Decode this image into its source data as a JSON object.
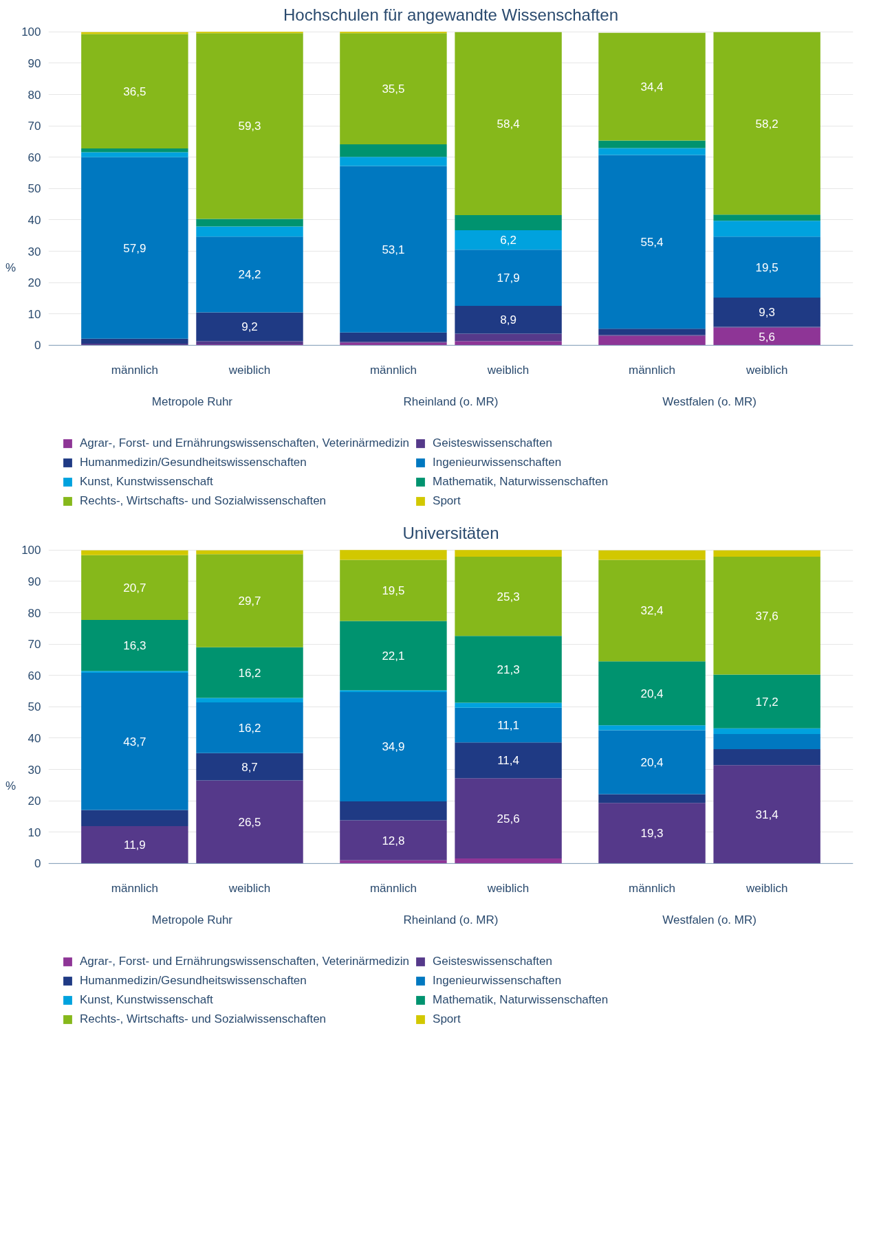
{
  "chart_data": [
    {
      "type": "bar",
      "stacked": true,
      "title": "Hochschulen für angewandte Wissenschaften",
      "ylabel": "%",
      "categories": [
        "männlich",
        "weiblich",
        "männlich",
        "weiblich",
        "männlich",
        "weiblich"
      ],
      "annotations": [
        "Metropole Ruhr",
        "Rheinland (o. MR)",
        "Westfalen (o. MR)"
      ],
      "ylim": [
        0,
        100
      ],
      "yticks": [
        0,
        10,
        20,
        30,
        40,
        50,
        60,
        70,
        80,
        90,
        100
      ],
      "grid": "y",
      "legend": "bottom",
      "series": [
        {
          "name": "Agrar-, Forst- und Ernährungswissenschaften, Veterinärmedizin",
          "color": "#8e3596",
          "values": [
            null,
            0.3,
            0.8,
            1.3,
            3.0,
            5.6
          ],
          "value_labels": [
            null,
            null,
            null,
            null,
            null,
            "5,6"
          ]
        },
        {
          "name": "Geisteswissenschaften",
          "color": "#55398a",
          "values": [
            0.5,
            1.0,
            0.3,
            2.4,
            0.3,
            0.3
          ],
          "value_labels": [
            null,
            null,
            null,
            null,
            null,
            null
          ]
        },
        {
          "name": "Humanmedizin/Gesundheitswissenschaften",
          "color": "#1f3a84",
          "values": [
            1.6,
            9.2,
            3.0,
            8.9,
            2.0,
            9.3
          ],
          "value_labels": [
            null,
            "9,2",
            null,
            "8,9",
            null,
            "9,3"
          ]
        },
        {
          "name": "Ingenieurwissenschaften",
          "color": "#0078c0",
          "values": [
            57.9,
            24.2,
            53.1,
            17.9,
            55.4,
            19.5
          ],
          "value_labels": [
            "57,9",
            "24,2",
            "53,1",
            "17,9",
            "55,4",
            "19,5"
          ]
        },
        {
          "name": "Kunst, Kunstwissenschaft",
          "color": "#00a2de",
          "values": [
            1.6,
            3.2,
            2.9,
            6.2,
            2.2,
            5.0
          ],
          "value_labels": [
            null,
            null,
            null,
            "6,2",
            null,
            null
          ]
        },
        {
          "name": "Mathematik, Naturwissenschaften",
          "color": "#00936f",
          "values": [
            1.2,
            2.4,
            4.0,
            4.8,
            2.4,
            2.0
          ],
          "value_labels": [
            null,
            null,
            null,
            null,
            null,
            null
          ]
        },
        {
          "name": "Rechts-, Wirtschafts- und Sozialwissenschaften",
          "color": "#86b81b",
          "values": [
            36.5,
            59.3,
            35.5,
            58.4,
            34.4,
            58.2
          ],
          "value_labels": [
            "36,5",
            "59,3",
            "35,5",
            "58,4",
            "34,4",
            "58,2"
          ]
        },
        {
          "name": "Sport",
          "color": "#d2c800",
          "values": [
            0.6,
            0.4,
            0.4,
            null,
            null,
            null
          ],
          "value_labels": [
            null,
            null,
            null,
            null,
            null,
            null
          ]
        }
      ]
    },
    {
      "type": "bar",
      "stacked": true,
      "title": "Universitäten",
      "ylabel": "%",
      "categories": [
        "männlich",
        "weiblich",
        "männlich",
        "weiblich",
        "männlich",
        "weiblich"
      ],
      "annotations": [
        "Metropole Ruhr",
        "Rheinland (o. MR)",
        "Westfalen (o. MR)"
      ],
      "ylim": [
        0,
        100
      ],
      "yticks": [
        0,
        10,
        20,
        30,
        40,
        50,
        60,
        70,
        80,
        90,
        100
      ],
      "grid": "y",
      "legend": "bottom",
      "series": [
        {
          "name": "Agrar-, Forst- und Ernährungswissenschaften, Veterinärmedizin",
          "color": "#8e3596",
          "values": [
            null,
            null,
            1.0,
            1.6,
            null,
            null
          ],
          "value_labels": [
            null,
            null,
            null,
            null,
            null,
            null
          ]
        },
        {
          "name": "Geisteswissenschaften",
          "color": "#55398a",
          "values": [
            11.9,
            26.5,
            12.8,
            25.6,
            19.3,
            31.4
          ],
          "value_labels": [
            "11,9",
            "26,5",
            "12,8",
            "25,6",
            "19,3",
            "31,4"
          ]
        },
        {
          "name": "Humanmedizin/Gesundheitswissenschaften",
          "color": "#1f3a84",
          "values": [
            5.2,
            8.7,
            6.0,
            11.4,
            2.8,
            5.1
          ],
          "value_labels": [
            null,
            "8,7",
            null,
            "11,4",
            null,
            null
          ]
        },
        {
          "name": "Ingenieurwissenschaften",
          "color": "#0078c0",
          "values": [
            43.7,
            16.2,
            34.9,
            11.1,
            20.4,
            4.8
          ],
          "value_labels": [
            "43,7",
            "16,2",
            "34,9",
            "11,1",
            "20,4",
            null
          ]
        },
        {
          "name": "Kunst, Kunstwissenschaft",
          "color": "#00a2de",
          "values": [
            0.6,
            1.4,
            0.6,
            1.6,
            1.6,
            1.8
          ],
          "value_labels": [
            null,
            null,
            null,
            null,
            null,
            null
          ]
        },
        {
          "name": "Mathematik, Naturwissenschaften",
          "color": "#00936f",
          "values": [
            16.3,
            16.2,
            22.1,
            21.3,
            20.4,
            17.2
          ],
          "value_labels": [
            "16,3",
            "16,2",
            "22,1",
            "21,3",
            "20,4",
            "17,2"
          ]
        },
        {
          "name": "Rechts-, Wirtschafts- und Sozialwissenschaften",
          "color": "#86b81b",
          "values": [
            20.7,
            29.7,
            19.5,
            25.3,
            32.4,
            37.6
          ],
          "value_labels": [
            "20,7",
            "29,7",
            "19,5",
            "25,3",
            "32,4",
            "37,6"
          ]
        },
        {
          "name": "Sport",
          "color": "#d2c800",
          "values": [
            1.5,
            1.2,
            3.1,
            2.1,
            3.0,
            2.0
          ],
          "value_labels": [
            null,
            null,
            null,
            null,
            null,
            null
          ]
        }
      ]
    }
  ]
}
